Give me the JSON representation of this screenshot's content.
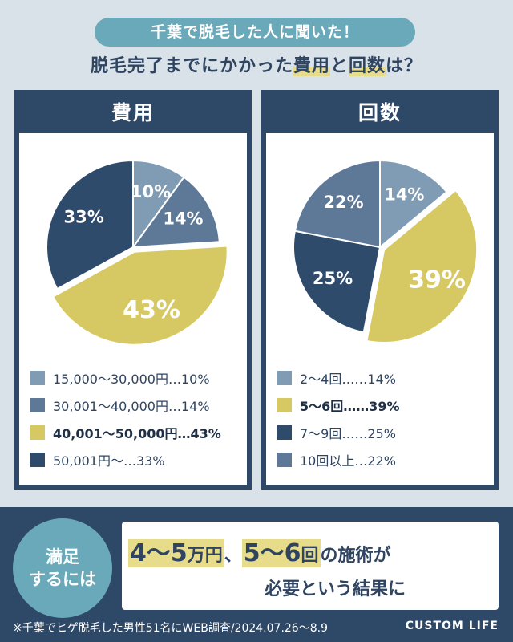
{
  "banner": "千葉で脱毛した人に聞いた！",
  "headline": {
    "pre": "脱毛完了までにかかった",
    "hl1": "費用",
    "mid": "と",
    "hl2": "回数",
    "post": "は？"
  },
  "colors": {
    "c1": "#7f9cb4",
    "c2": "#5e7997",
    "c3": "#d6c964",
    "c4": "#2f4b6c"
  },
  "chart_data": [
    {
      "type": "pie",
      "title": "費用",
      "categories": [
        "15,000〜30,000円",
        "30,001〜40,000円",
        "40,001〜50,000円",
        "50,001円〜"
      ],
      "values": [
        10,
        14,
        43,
        33
      ],
      "labels": [
        "10%",
        "14%",
        "43%",
        "33%"
      ],
      "legend": [
        "15,000〜30,000円…10%",
        "30,001〜40,000円…14%",
        "40,001〜50,000円…43%",
        "50,001円〜…33%"
      ]
    },
    {
      "type": "pie",
      "title": "回数",
      "categories": [
        "2〜4回",
        "5〜6回",
        "7〜9回",
        "10回以上"
      ],
      "values": [
        14,
        39,
        25,
        22
      ],
      "labels": [
        "14%",
        "39%",
        "25%",
        "22%"
      ],
      "legend": [
        "2〜4回……14%",
        "5〜6回……39%",
        "7〜9回……25%",
        "10回以上…22%"
      ]
    }
  ],
  "result": {
    "badge_line1": "満足",
    "badge_line2": "するには",
    "a": "4〜5",
    "a_unit": "万円",
    "sep": "、",
    "b": "5〜6",
    "b_unit": "回",
    "tail": "の施術が",
    "line2": "必要という結果に"
  },
  "footnote": "※千葉でヒゲ脱毛した男性51名にWEB調査/2024.07.26〜8.9",
  "brand": "CUSTOM LIFE"
}
